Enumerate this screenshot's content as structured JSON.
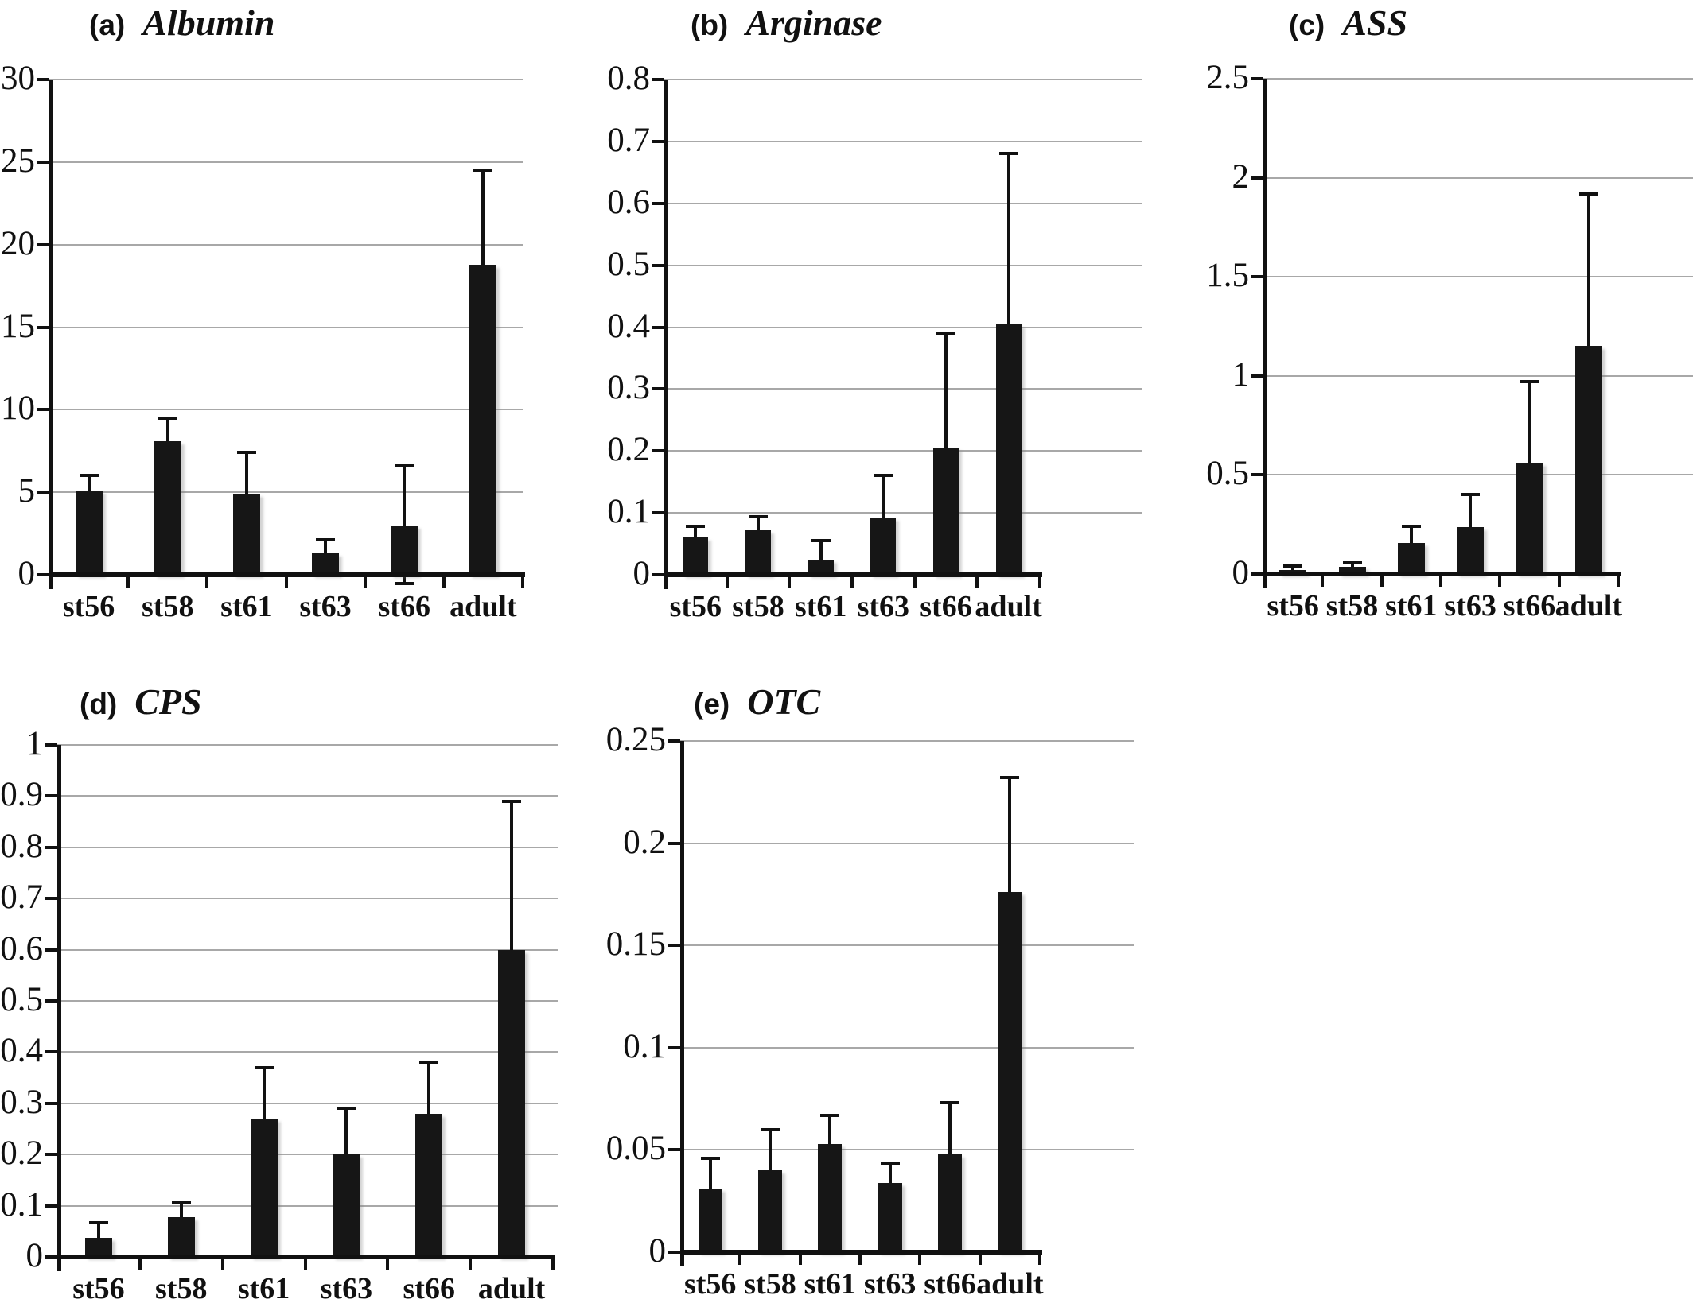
{
  "figure": {
    "background": "#ffffff",
    "bar_color": "#161616",
    "gridline_color": "#a8a8a8",
    "axis_color": "#111111"
  },
  "chart_data": [
    {
      "type": "bar",
      "panel_label": "(a)",
      "title": "Albumin",
      "categories": [
        "st56",
        "st58",
        "st61",
        "st63",
        "st66",
        "adult"
      ],
      "values": [
        5.1,
        8.1,
        4.9,
        1.3,
        3.0,
        18.8
      ],
      "error_top": [
        6.0,
        9.5,
        7.4,
        2.1,
        6.6,
        24.5
      ],
      "error_bottom": [
        null,
        null,
        null,
        null,
        -0.55,
        null
      ],
      "xlabel": "",
      "ylabel": "",
      "ylim": [
        0,
        30
      ],
      "ytick_labels": [
        "0",
        "5",
        "10",
        "15",
        "20",
        "25",
        "30"
      ],
      "grid": true,
      "legend": false
    },
    {
      "type": "bar",
      "panel_label": "(b)",
      "title": "Arginase",
      "categories": [
        "st56",
        "st58",
        "st61",
        "st63",
        "st66",
        "adult"
      ],
      "values": [
        0.06,
        0.072,
        0.025,
        0.093,
        0.205,
        0.405
      ],
      "error_top": [
        0.078,
        0.094,
        0.055,
        0.16,
        0.39,
        0.68
      ],
      "error_bottom": [
        null,
        null,
        null,
        null,
        null,
        null
      ],
      "xlabel": "",
      "ylabel": "",
      "ylim": [
        0,
        0.8
      ],
      "ytick_labels": [
        "0",
        "0.1",
        "0.2",
        "0.3",
        "0.4",
        "0.5",
        "0.6",
        "0.7",
        "0.8"
      ],
      "grid": true,
      "legend": false
    },
    {
      "type": "bar",
      "panel_label": "(c)",
      "title": "ASS",
      "categories": [
        "st56",
        "st58",
        "st61",
        "st63",
        "st66",
        "adult"
      ],
      "values": [
        0.02,
        0.035,
        0.155,
        0.235,
        0.56,
        1.15
      ],
      "error_top": [
        0.04,
        0.058,
        0.24,
        0.4,
        0.97,
        1.92
      ],
      "error_bottom": [
        null,
        null,
        null,
        null,
        null,
        null
      ],
      "xlabel": "",
      "ylabel": "",
      "ylim": [
        0,
        2.5
      ],
      "ytick_labels": [
        "0",
        "0.5",
        "1",
        "1.5",
        "2",
        "2.5"
      ],
      "grid": true,
      "legend": false
    },
    {
      "type": "bar",
      "panel_label": "(d)",
      "title": "CPS",
      "categories": [
        "st56",
        "st58",
        "st61",
        "st63",
        "st66",
        "adult"
      ],
      "values": [
        0.037,
        0.077,
        0.27,
        0.2,
        0.28,
        0.6
      ],
      "error_top": [
        0.066,
        0.105,
        0.37,
        0.29,
        0.38,
        0.89
      ],
      "error_bottom": [
        null,
        null,
        null,
        null,
        null,
        null
      ],
      "xlabel": "",
      "ylabel": "",
      "ylim": [
        0,
        1
      ],
      "ytick_labels": [
        "0",
        "0.1",
        "0.2",
        "0.3",
        "0.4",
        "0.5",
        "0.6",
        "0.7",
        "0.8",
        "0.9",
        "1"
      ],
      "grid": true,
      "legend": false
    },
    {
      "type": "bar",
      "panel_label": "(e)",
      "title": "OTC",
      "categories": [
        "st56",
        "st58",
        "st61",
        "st63",
        "st66",
        "adult"
      ],
      "values": [
        0.031,
        0.04,
        0.053,
        0.034,
        0.048,
        0.176
      ],
      "error_top": [
        0.046,
        0.06,
        0.067,
        0.043,
        0.073,
        0.232
      ],
      "error_bottom": [
        null,
        null,
        null,
        null,
        null,
        null
      ],
      "xlabel": "",
      "ylabel": "",
      "ylim": [
        0,
        0.25
      ],
      "ytick_labels": [
        "0",
        "0.05",
        "0.1",
        "0.15",
        "0.2",
        "0.25"
      ],
      "grid": true,
      "legend": false
    }
  ]
}
